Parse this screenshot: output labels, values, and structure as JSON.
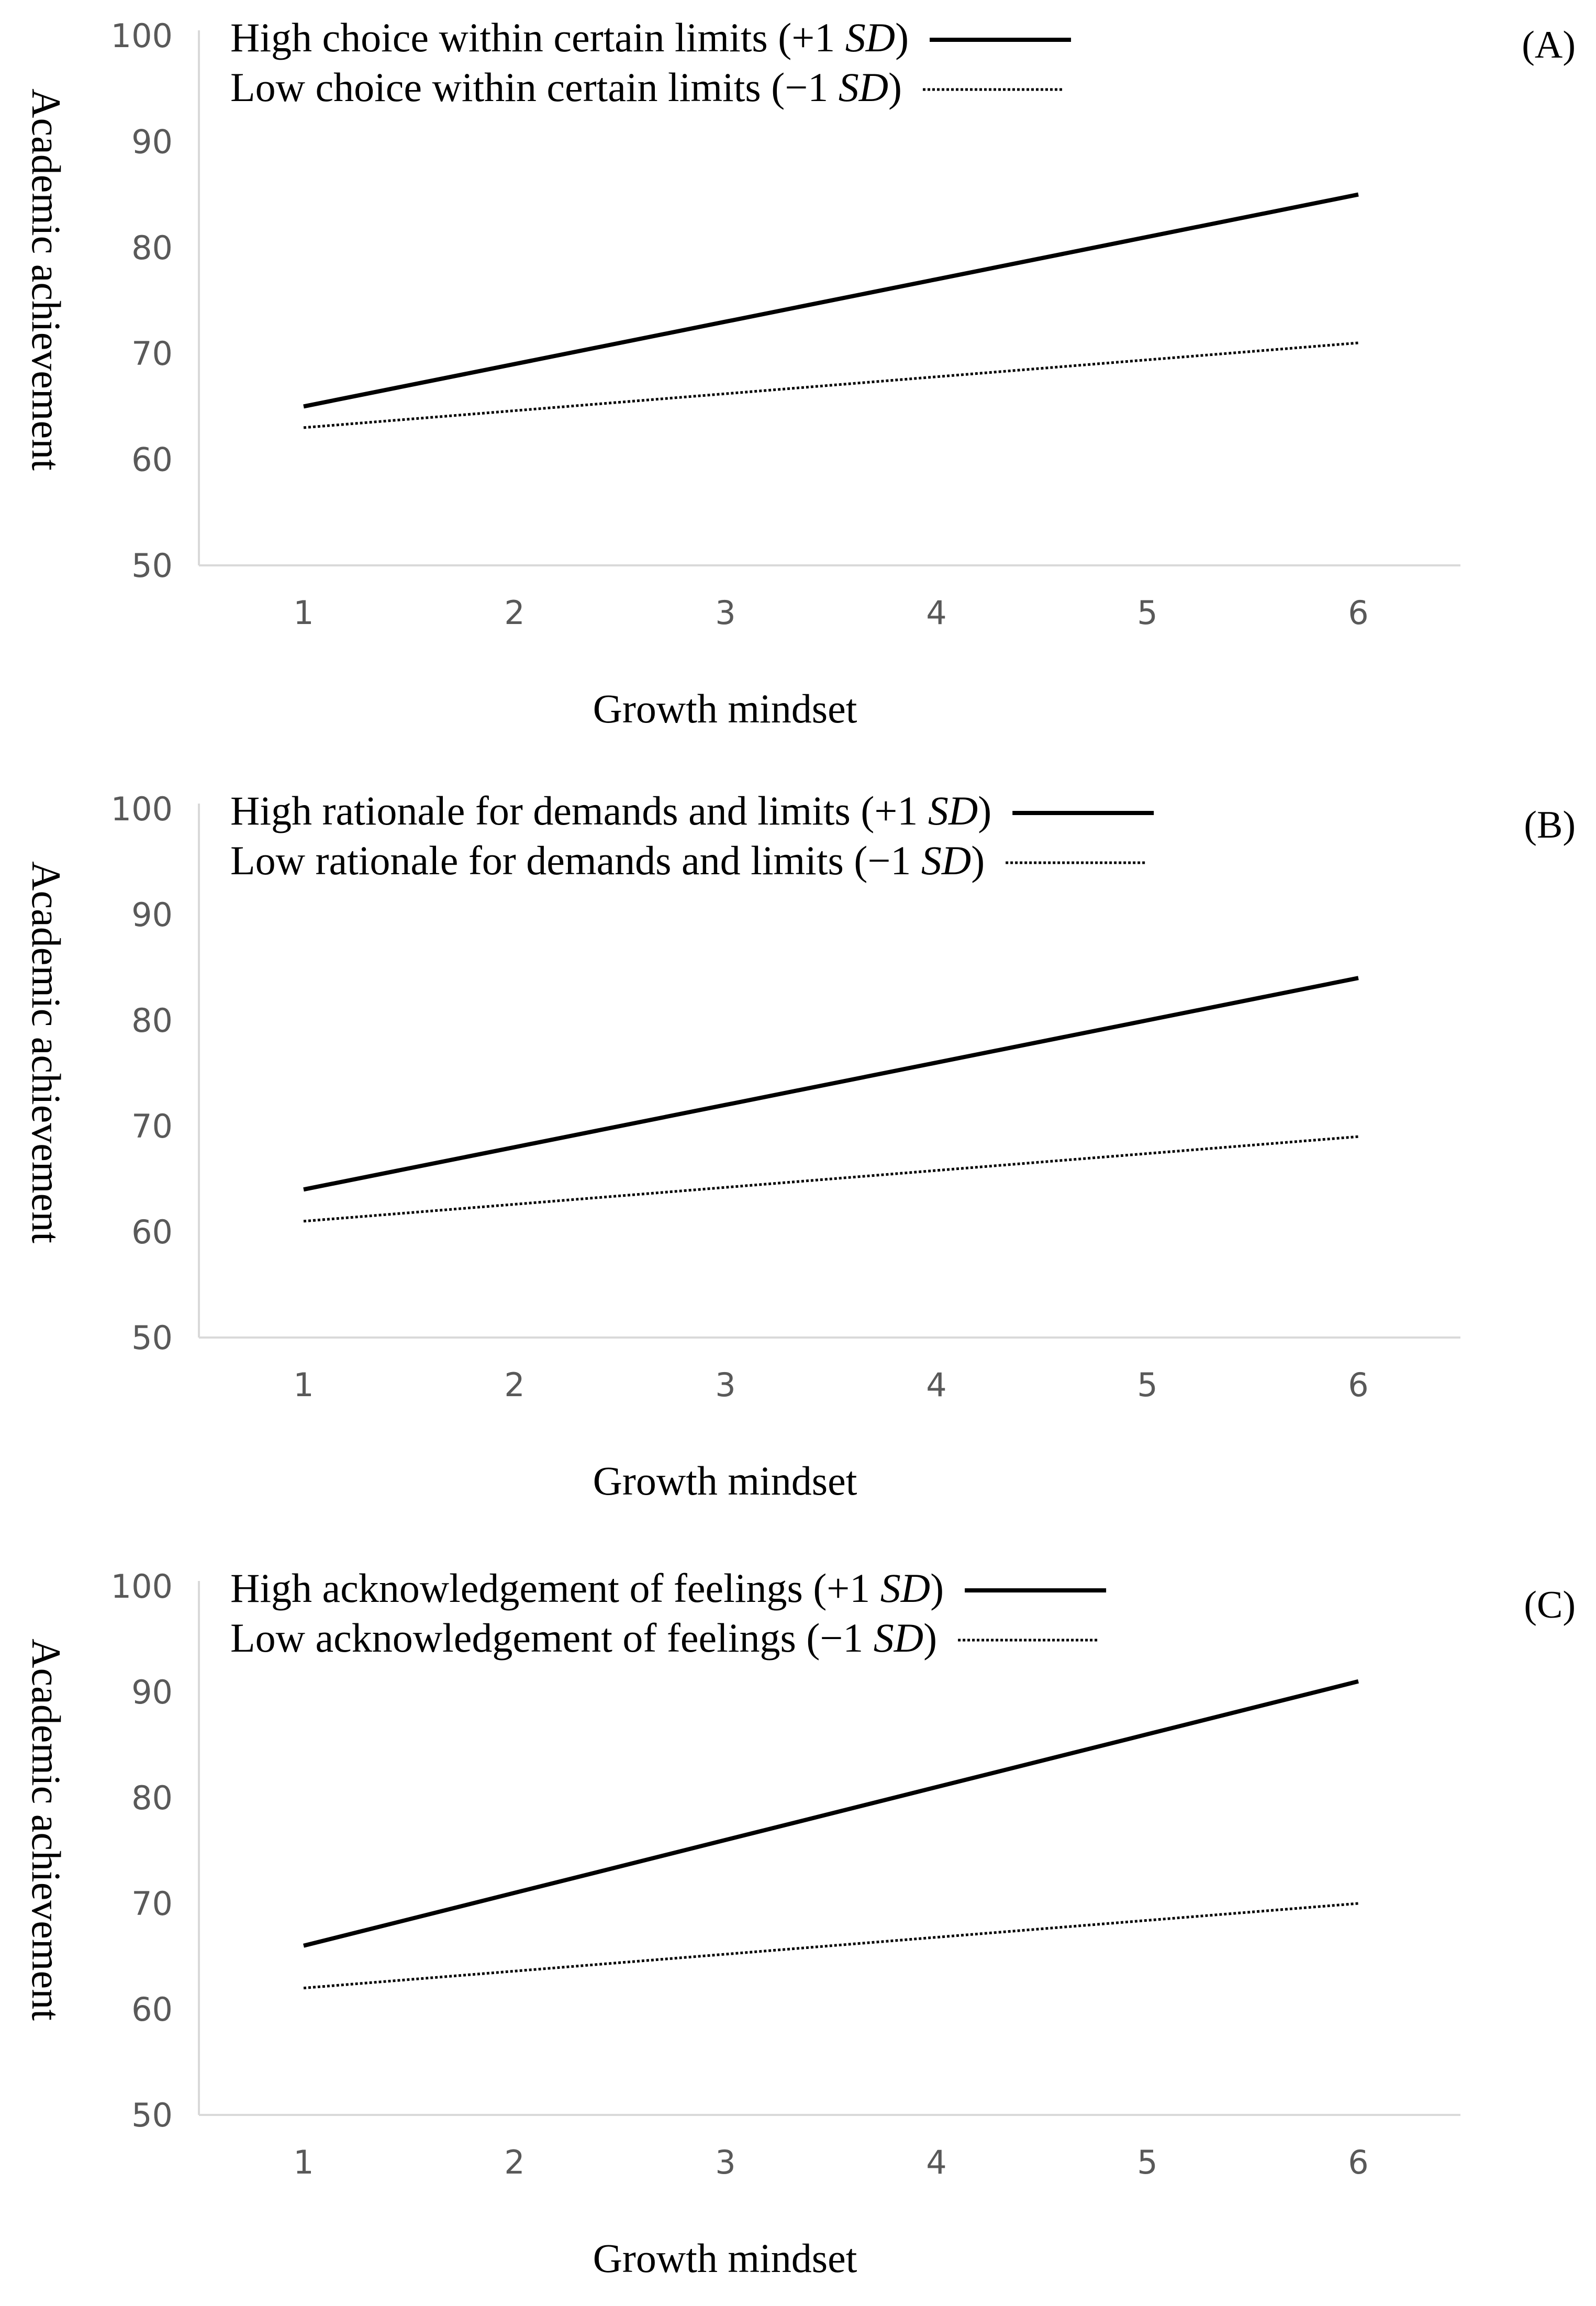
{
  "figure": {
    "line_colors": {
      "high": "#000000",
      "low": "#000000",
      "axis": "#d9d9d9",
      "text": "#000000",
      "tick": "#595959"
    }
  },
  "chart_data": [
    {
      "type": "line",
      "panel_label": "(A)",
      "title": "",
      "xlabel": "Growth mindset",
      "ylabel": "Academic achievement",
      "x": [
        1,
        2,
        3,
        4,
        5,
        6
      ],
      "xlim": [
        0.5,
        6.5
      ],
      "ylim": [
        50,
        100
      ],
      "yticks": [
        50,
        60,
        70,
        80,
        90,
        100
      ],
      "legend_position": "top-left",
      "series": [
        {
          "name": "High choice within certain limits",
          "suffix_open": " (+1 ",
          "sd": "SD",
          "suffix_close": ")",
          "style": "solid",
          "values": [
            65,
            69,
            73,
            77,
            81,
            85
          ]
        },
        {
          "name": "Low choice within certain limits",
          "suffix_open": " (−1 ",
          "sd": "SD",
          "suffix_close": ")",
          "style": "dotted",
          "values": [
            63,
            64.6,
            66.2,
            67.8,
            69.4,
            71
          ]
        }
      ]
    },
    {
      "type": "line",
      "panel_label": "(B)",
      "title": "",
      "xlabel": "Growth mindset",
      "ylabel": "Academic achievement",
      "x": [
        1,
        2,
        3,
        4,
        5,
        6
      ],
      "xlim": [
        0.5,
        6.5
      ],
      "ylim": [
        50,
        100
      ],
      "yticks": [
        50,
        60,
        70,
        80,
        90,
        100
      ],
      "legend_position": "top-left",
      "series": [
        {
          "name": "High rationale for demands and limits",
          "suffix_open": " (+1 ",
          "sd": "SD",
          "suffix_close": ")",
          "style": "solid",
          "values": [
            64,
            68,
            72,
            76,
            80,
            84
          ]
        },
        {
          "name": "Low rationale for demands and limits",
          "suffix_open": " (−1 ",
          "sd": "SD",
          "suffix_close": ")",
          "style": "dotted",
          "values": [
            61,
            62.6,
            64.2,
            65.8,
            67.4,
            69
          ]
        }
      ]
    },
    {
      "type": "line",
      "panel_label": "(C)",
      "title": "",
      "xlabel": "Growth mindset",
      "ylabel": "Academic achievement",
      "x": [
        1,
        2,
        3,
        4,
        5,
        6
      ],
      "xlim": [
        0.5,
        6.5
      ],
      "ylim": [
        50,
        100
      ],
      "yticks": [
        50,
        60,
        70,
        80,
        90,
        100
      ],
      "legend_position": "top-left",
      "series": [
        {
          "name": "High acknowledgement of feelings",
          "suffix_open": " (+1 ",
          "sd": "SD",
          "suffix_close": ")",
          "style": "solid",
          "values": [
            66,
            71,
            76,
            81,
            86,
            91
          ]
        },
        {
          "name": "Low acknowledgement of feelings",
          "suffix_open": " (−1 ",
          "sd": "SD",
          "suffix_close": ")",
          "style": "dotted",
          "values": [
            62,
            63.6,
            65.2,
            66.8,
            68.4,
            70
          ]
        }
      ]
    }
  ]
}
